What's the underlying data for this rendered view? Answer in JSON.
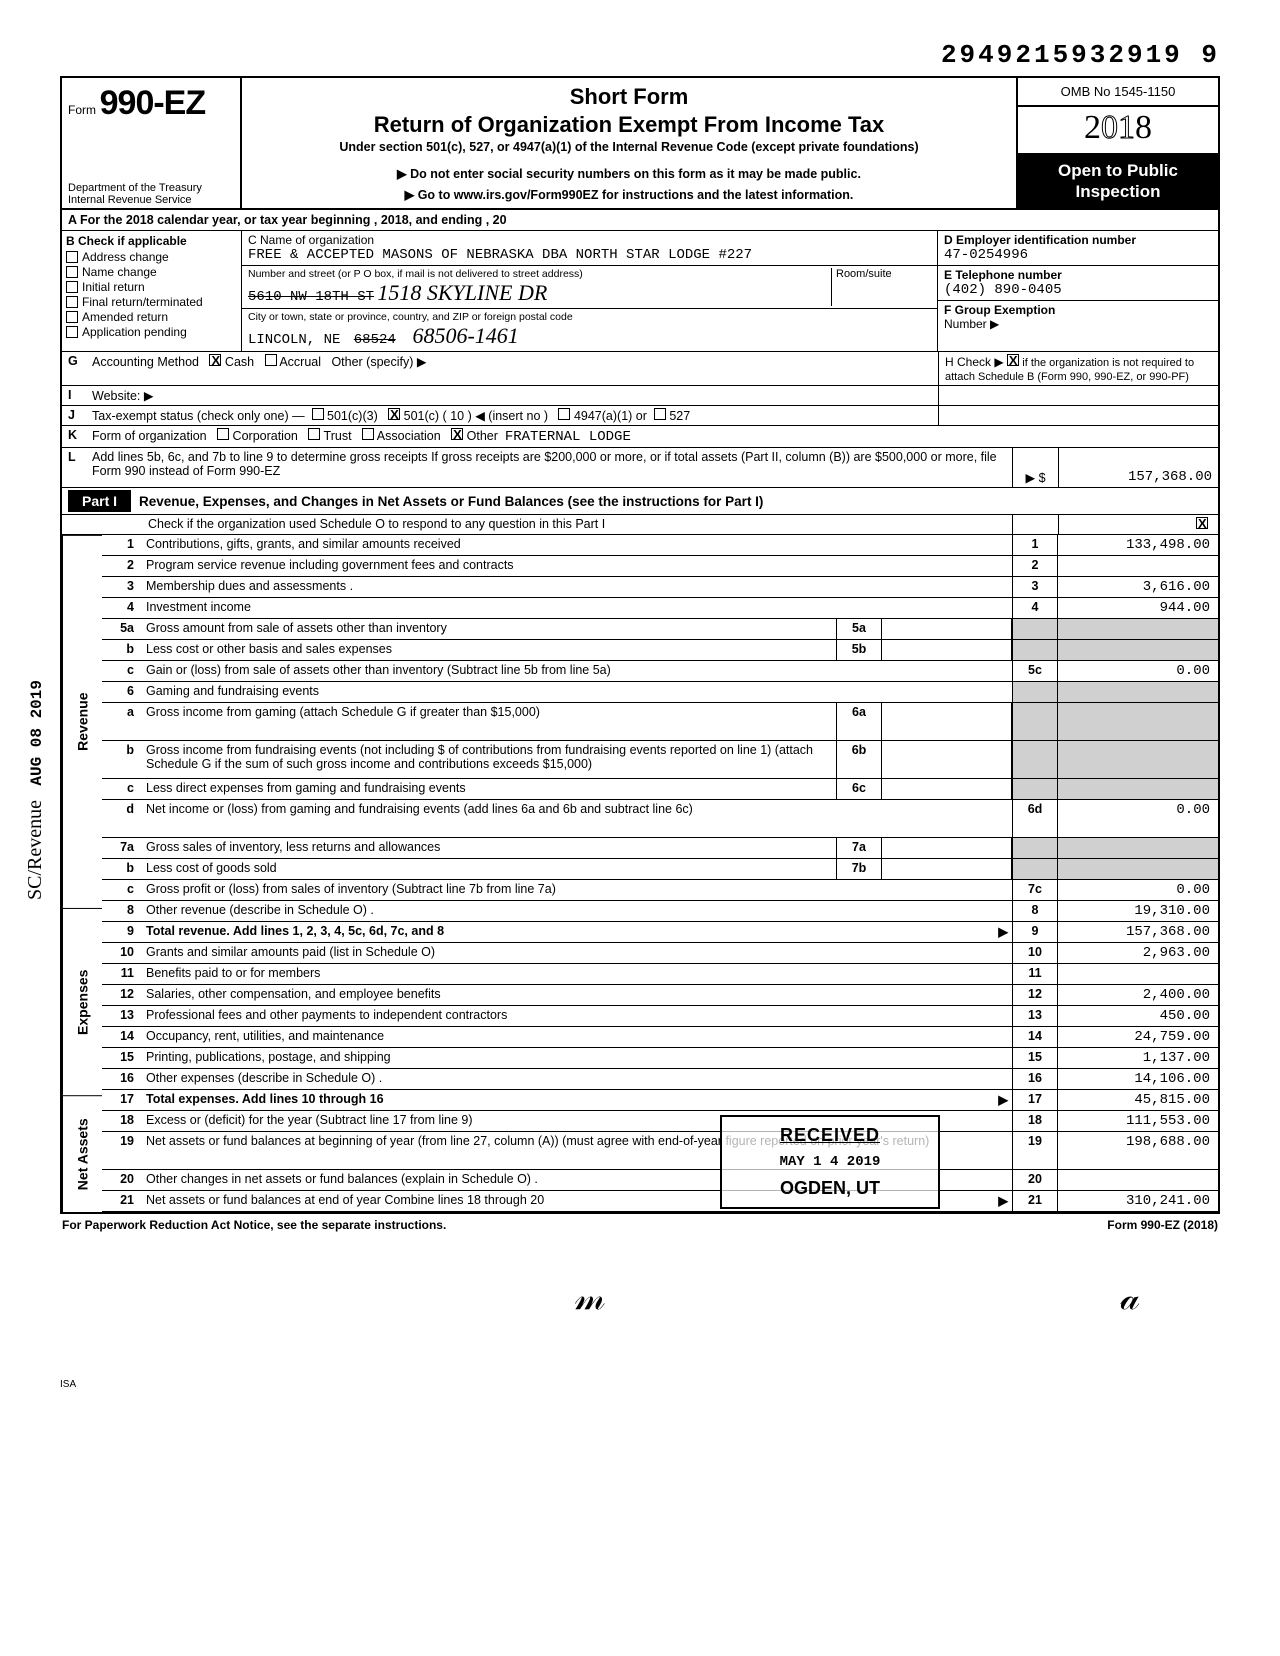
{
  "top_number": "2949215932919 9",
  "header": {
    "form_label": "Form",
    "form_number": "990-EZ",
    "dept1": "Department of the Treasury",
    "dept2": "Internal Revenue Service",
    "short_form": "Short Form",
    "main_title": "Return of Organization Exempt From Income Tax",
    "sub_title": "Under section 501(c), 527, or 4947(a)(1) of the Internal Revenue Code (except private foundations)",
    "instr1": "▶ Do not enter social security numbers on this form as it may be made public.",
    "instr2": "▶ Go to www.irs.gov/Form990EZ for instructions and the latest information.",
    "omb": "OMB No 1545-1150",
    "year": "2018",
    "open1": "Open to Public",
    "open2": "Inspection"
  },
  "row_a": "A  For the 2018 calendar year, or tax year beginning                                                    , 2018, and ending                                              , 20",
  "section_b": {
    "head": "B  Check if applicable",
    "opts": [
      "Address change",
      "Name change",
      "Initial return",
      "Final return/terminated",
      "Amended return",
      "Application pending"
    ]
  },
  "section_c": {
    "name_lbl": "C  Name of organization",
    "name_val": "FREE & ACCEPTED MASONS OF NEBRASKA DBA NORTH STAR LODGE #227",
    "addr_lbl": "Number and street (or P O box, if mail is not delivered to street address)",
    "room_lbl": "Room/suite",
    "addr_strike": "5610 NW 18TH ST",
    "addr_hand": "1518 SKYLINE DR",
    "city_lbl": "City or town, state or province, country, and ZIP or foreign postal code",
    "city_val": "LINCOLN, NE",
    "zip_strike": "68524",
    "zip_hand": "68506-1461"
  },
  "section_d": {
    "d_lbl": "D  Employer identification number",
    "d_val": "47-0254996",
    "e_lbl": "E  Telephone number",
    "e_val": "(402) 890-0405",
    "f_lbl": "F  Group Exemption",
    "f_lbl2": "Number ▶"
  },
  "line_g": {
    "lbl": "G",
    "txt": "Accounting Method",
    "cash": "Cash",
    "accrual": "Accrual",
    "other": "Other (specify) ▶"
  },
  "line_h": {
    "txt": "H  Check ▶",
    "txt2": "if the organization is not required to attach Schedule B (Form 990, 990-EZ, or 990-PF)"
  },
  "line_i": {
    "lbl": "I",
    "txt": "Website: ▶"
  },
  "line_j": {
    "lbl": "J",
    "txt": "Tax-exempt status (check only one) —",
    "o1": "501(c)(3)",
    "o2": "501(c) ( 10 ) ◀ (insert no )",
    "o3": "4947(a)(1) or",
    "o4": "527"
  },
  "line_k": {
    "lbl": "K",
    "txt": "Form of organization",
    "o1": "Corporation",
    "o2": "Trust",
    "o3": "Association",
    "o4": "Other",
    "val": "FRATERNAL LODGE"
  },
  "line_l": {
    "lbl": "L",
    "txt": "Add lines 5b, 6c, and 7b to line 9 to determine gross receipts  If gross receipts are $200,000 or more, or if total assets (Part II, column (B)) are $500,000 or more, file Form 990 instead of Form 990-EZ",
    "arrow": "▶",
    "dollar": "$",
    "val": "157,368.00"
  },
  "part1": {
    "label": "Part I",
    "title": "Revenue, Expenses, and Changes in Net Assets or Fund Balances (see the instructions for Part I)",
    "check_line": "Check if the organization used Schedule O to respond to any question in this Part I"
  },
  "vert": {
    "rev": "Revenue",
    "exp": "Expenses",
    "net": "Net Assets"
  },
  "rows": [
    {
      "n": "1",
      "d": "Contributions, gifts, grants, and similar amounts received",
      "en": "1",
      "ev": "133,498.00"
    },
    {
      "n": "2",
      "d": "Program service revenue including government fees and contracts",
      "en": "2",
      "ev": ""
    },
    {
      "n": "3",
      "d": "Membership dues and assessments .",
      "en": "3",
      "ev": "3,616.00"
    },
    {
      "n": "4",
      "d": "Investment income",
      "en": "4",
      "ev": "944.00"
    },
    {
      "n": "5a",
      "d": "Gross amount from sale of assets other than inventory",
      "mn": "5a",
      "mv": "",
      "grey": true
    },
    {
      "n": "b",
      "d": "Less cost or other basis and sales expenses",
      "mn": "5b",
      "mv": "",
      "grey": true
    },
    {
      "n": "c",
      "d": "Gain or (loss) from sale of assets other than inventory (Subtract line 5b from line 5a)",
      "en": "5c",
      "ev": "0.00"
    },
    {
      "n": "6",
      "d": "Gaming and fundraising events",
      "grey_full": true
    },
    {
      "n": "a",
      "d": "Gross income from gaming (attach Schedule G if greater than $15,000)",
      "mn": "6a",
      "mv": "",
      "grey": true,
      "tall": true
    },
    {
      "n": "b",
      "d": "Gross income from fundraising events (not including  $                             of contributions from fundraising events reported on line 1) (attach Schedule G if the sum of such gross income and contributions exceeds $15,000)",
      "mn": "6b",
      "mv": "",
      "grey": true,
      "tall": true
    },
    {
      "n": "c",
      "d": "Less direct expenses from gaming and fundraising events",
      "mn": "6c",
      "mv": "",
      "grey": true
    },
    {
      "n": "d",
      "d": "Net income or (loss) from gaming and fundraising events (add lines 6a and 6b and subtract line 6c)",
      "en": "6d",
      "ev": "0.00",
      "tall": true
    },
    {
      "n": "7a",
      "d": "Gross sales of inventory, less returns and allowances",
      "mn": "7a",
      "mv": "",
      "grey": true
    },
    {
      "n": "b",
      "d": "Less cost of goods sold",
      "mn": "7b",
      "mv": "",
      "grey": true
    },
    {
      "n": "c",
      "d": "Gross profit or (loss) from sales of inventory (Subtract line 7b from line 7a)",
      "en": "7c",
      "ev": "0.00"
    },
    {
      "n": "8",
      "d": "Other revenue (describe in Schedule O) .",
      "en": "8",
      "ev": "19,310.00"
    },
    {
      "n": "9",
      "d": "Total revenue. Add lines 1, 2, 3, 4, 5c, 6d, 7c, and 8",
      "en": "9",
      "ev": "157,368.00",
      "bold": true,
      "arrow": true
    },
    {
      "n": "10",
      "d": "Grants and similar amounts paid (list in Schedule O)",
      "en": "10",
      "ev": "2,963.00"
    },
    {
      "n": "11",
      "d": "Benefits paid to or for members",
      "en": "11",
      "ev": ""
    },
    {
      "n": "12",
      "d": "Salaries, other compensation, and employee benefits",
      "en": "12",
      "ev": "2,400.00"
    },
    {
      "n": "13",
      "d": "Professional fees and other payments to independent contractors",
      "en": "13",
      "ev": "450.00"
    },
    {
      "n": "14",
      "d": "Occupancy, rent, utilities, and maintenance",
      "en": "14",
      "ev": "24,759.00"
    },
    {
      "n": "15",
      "d": "Printing, publications, postage, and shipping",
      "en": "15",
      "ev": "1,137.00"
    },
    {
      "n": "16",
      "d": "Other expenses (describe in Schedule O) .",
      "en": "16",
      "ev": "14,106.00"
    },
    {
      "n": "17",
      "d": "Total expenses. Add lines 10 through 16",
      "en": "17",
      "ev": "45,815.00",
      "bold": true,
      "arrow": true
    },
    {
      "n": "18",
      "d": "Excess or (deficit) for the year (Subtract line 17 from line 9)",
      "en": "18",
      "ev": "111,553.00"
    },
    {
      "n": "19",
      "d": "Net assets or fund balances at beginning of year (from line 27, column (A)) (must agree with end-of-year figure reported on prior year's return)",
      "en": "19",
      "ev": "198,688.00",
      "tall": true
    },
    {
      "n": "20",
      "d": "Other changes in net assets or fund balances (explain in Schedule O) .",
      "en": "20",
      "ev": ""
    },
    {
      "n": "21",
      "d": "Net assets or fund balances at end of year  Combine lines 18 through 20",
      "en": "21",
      "ev": "310,241.00",
      "arrow": true
    }
  ],
  "footer": {
    "left": "For Paperwork Reduction Act Notice, see the separate instructions.",
    "right": "Form 990-EZ (2018)"
  },
  "stamp": {
    "r1": "RECEIVED",
    "r2": "MAY 1 4 2019",
    "r3": "OGDEN, UT"
  },
  "side_date": "AUG 08 2019",
  "side_text": "SC/Revenue",
  "isa": "ISA"
}
